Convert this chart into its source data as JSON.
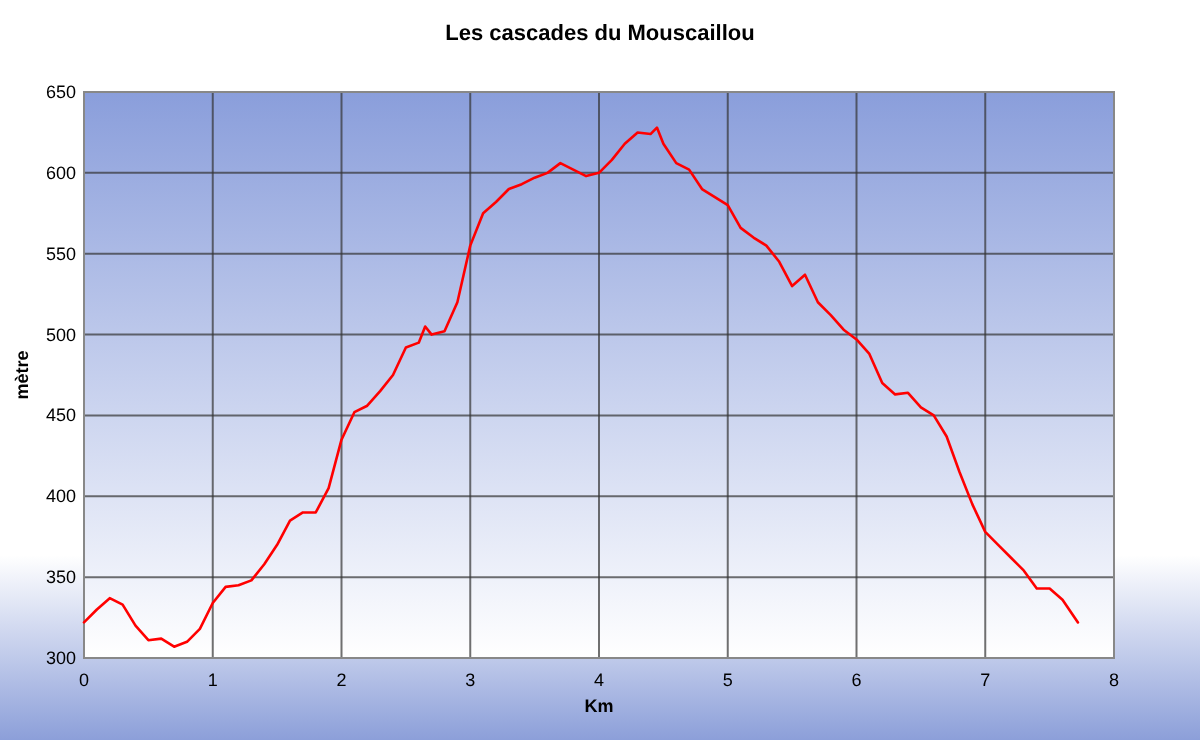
{
  "chart_data": {
    "type": "line",
    "title": "Les cascades du Mouscaillou",
    "xlabel": "Km",
    "ylabel": "mètre",
    "grid": true,
    "marker": "none",
    "xlim": [
      0,
      8
    ],
    "xticks": [
      0,
      1,
      2,
      3,
      4,
      5,
      6,
      7,
      8
    ],
    "ylim": [
      300,
      650
    ],
    "yticks": [
      300,
      350,
      400,
      450,
      500,
      550,
      600,
      650
    ],
    "series": [
      {
        "color": "#ff0000",
        "x": [
          0,
          0.1,
          0.2,
          0.3,
          0.4,
          0.5,
          0.6,
          0.7,
          0.8,
          0.9,
          1.0,
          1.1,
          1.2,
          1.3,
          1.4,
          1.5,
          1.6,
          1.7,
          1.8,
          1.9,
          2.0,
          2.1,
          2.2,
          2.3,
          2.4,
          2.5,
          2.6,
          2.65,
          2.7,
          2.8,
          2.9,
          3.0,
          3.1,
          3.2,
          3.3,
          3.4,
          3.5,
          3.6,
          3.7,
          3.8,
          3.9,
          4.0,
          4.1,
          4.2,
          4.3,
          4.4,
          4.45,
          4.5,
          4.6,
          4.7,
          4.8,
          4.9,
          5.0,
          5.1,
          5.2,
          5.3,
          5.4,
          5.5,
          5.6,
          5.7,
          5.8,
          5.9,
          6.0,
          6.1,
          6.2,
          6.3,
          6.4,
          6.5,
          6.6,
          6.7,
          6.8,
          6.9,
          7.0,
          7.1,
          7.2,
          7.3,
          7.4,
          7.5,
          7.6,
          7.72
        ],
        "values": [
          322,
          330,
          337,
          333,
          320,
          311,
          312,
          307,
          310,
          318,
          334,
          344,
          345,
          348,
          358,
          370,
          385,
          390,
          390,
          405,
          435,
          452,
          456,
          465,
          475,
          492,
          495,
          505,
          500,
          502,
          520,
          555,
          575,
          582,
          590,
          593,
          597,
          600,
          606,
          602,
          598,
          600,
          608,
          618,
          625,
          624,
          628,
          618,
          606,
          602,
          590,
          585,
          580,
          566,
          560,
          555,
          545,
          530,
          537,
          520,
          512,
          503,
          497,
          488,
          470,
          463,
          464,
          455,
          450,
          437,
          415,
          395,
          378,
          370,
          362,
          354,
          343,
          343,
          336,
          322
        ]
      }
    ]
  }
}
